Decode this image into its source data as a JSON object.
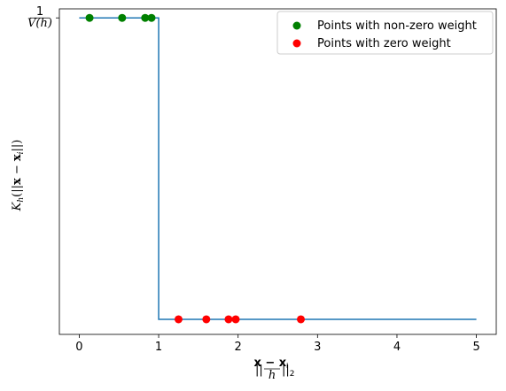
{
  "chart_data": {
    "type": "line",
    "title": "",
    "xlabel": "||(x - x_i)/h||_2",
    "ylabel": "K_h(||x - x_i||)",
    "xlim": [
      -0.25,
      5.25
    ],
    "ylim": [
      -0.05,
      1.03
    ],
    "xticks": [
      0,
      1,
      2,
      3,
      4,
      5
    ],
    "xtick_labels": [
      "0",
      "1",
      "2",
      "3",
      "4",
      "5"
    ],
    "yticks": [
      1
    ],
    "ytick_labels": [
      "1/V(h)"
    ],
    "grid": false,
    "legend_position": "top-right",
    "series": [
      {
        "type": "line",
        "color": "#1f77b4",
        "x": [
          0,
          1,
          1,
          5
        ],
        "y": [
          1,
          1,
          0,
          0
        ]
      },
      {
        "type": "scatter",
        "name": "Points with non-zero weight",
        "color": "#008000",
        "x": [
          0.13,
          0.54,
          0.83,
          0.91
        ],
        "y": [
          1,
          1,
          1,
          1
        ]
      },
      {
        "type": "scatter",
        "name": "Points with zero weight",
        "color": "#ff0000",
        "x": [
          1.25,
          1.6,
          1.88,
          1.97,
          2.79
        ],
        "y": [
          0,
          0,
          0,
          0,
          0
        ]
      }
    ]
  }
}
